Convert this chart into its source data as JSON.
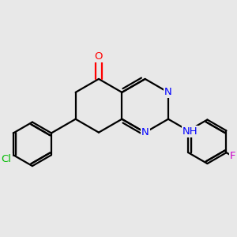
{
  "bg_color": "#e8e8e8",
  "bond_color": "#000000",
  "bond_width": 1.6,
  "atom_colors": {
    "O": "#ff0000",
    "N": "#0000ff",
    "Cl": "#00bb00",
    "F": "#cc00cc",
    "C": "#000000"
  },
  "font_size": 9.5,
  "figsize": [
    3.0,
    3.0
  ],
  "dpi": 100
}
